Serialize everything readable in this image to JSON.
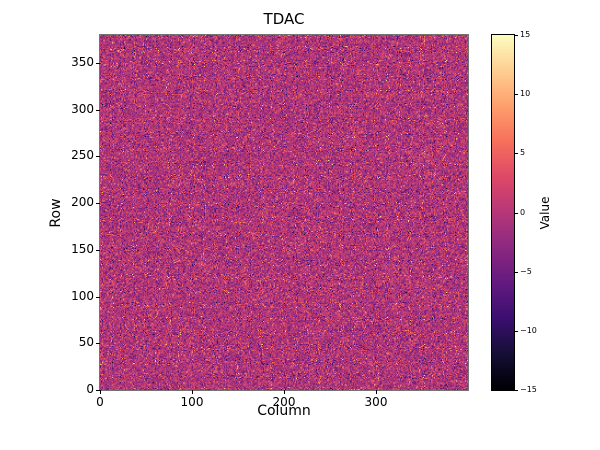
{
  "chart_data": {
    "type": "heatmap",
    "title": "TDAC",
    "xlabel": "Column",
    "ylabel": "Row",
    "xlim": [
      0,
      400
    ],
    "ylim": [
      0,
      380
    ],
    "x_ticks": [
      0,
      100,
      200,
      300
    ],
    "y_ticks": [
      0,
      50,
      100,
      150,
      200,
      250,
      300,
      350
    ],
    "grid": {
      "cols": 400,
      "rows": 380
    },
    "colormap": "magma",
    "colormap_stops": [
      [
        0.0,
        0,
        0,
        4
      ],
      [
        0.1,
        21,
        15,
        53
      ],
      [
        0.2,
        59,
        15,
        112
      ],
      [
        0.3,
        100,
        26,
        128
      ],
      [
        0.4,
        140,
        41,
        129
      ],
      [
        0.5,
        183,
        55,
        121
      ],
      [
        0.6,
        222,
        73,
        104
      ],
      [
        0.7,
        247,
        112,
        92
      ],
      [
        0.8,
        254,
        159,
        109
      ],
      [
        0.9,
        254,
        207,
        146
      ],
      [
        1.0,
        252,
        253,
        191
      ]
    ],
    "colorbar": {
      "label": "Value",
      "vmin": -15,
      "vmax": 15,
      "ticks": [
        15,
        10,
        5,
        0,
        -5,
        -10,
        -15
      ]
    },
    "noise": {
      "description": "per-pixel random values, approximately normal around 0 with sparse bright/dark outliers",
      "mean": -0.5,
      "std": 3,
      "outlier_frac": 0.06,
      "outlier_range": 13,
      "seed": 42
    },
    "legend": "colorbar-right",
    "grid_lines": false
  }
}
